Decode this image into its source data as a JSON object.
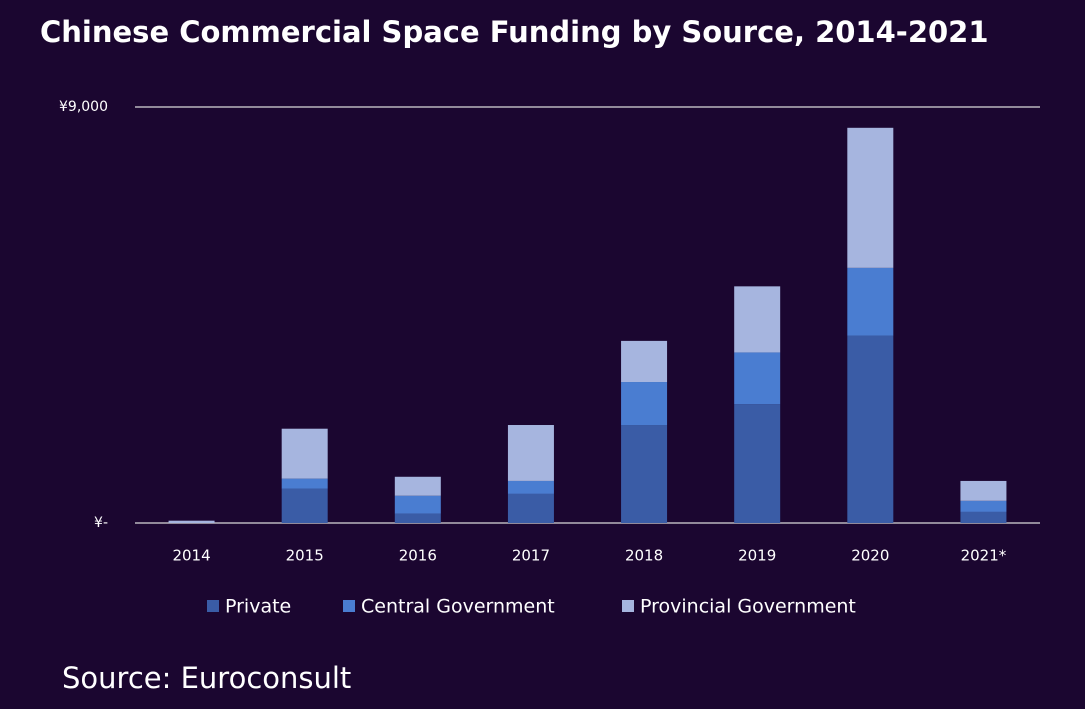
{
  "chart_data": {
    "type": "stacked_bar",
    "title": "Chinese Commercial Space Funding by Source, 2014-2021",
    "source": "Source: Euroconsult",
    "categories": [
      "2014",
      "2015",
      "2016",
      "2017",
      "2018",
      "2019",
      "2020",
      "2021*"
    ],
    "series": [
      {
        "name": "Private",
        "color": "#3a5ca6",
        "values": [
          0,
          740,
          200,
          630,
          2120,
          2570,
          4050,
          240
        ]
      },
      {
        "name": "Central Government",
        "color": "#4a7dd1",
        "values": [
          0,
          220,
          390,
          280,
          930,
          1120,
          1470,
          240
        ]
      },
      {
        "name": "Provincial Government",
        "color": "#a6b5df",
        "values": [
          50,
          1080,
          410,
          1210,
          890,
          1430,
          3030,
          430
        ]
      }
    ],
    "ylim": [
      0,
      9000
    ],
    "yticks": [
      {
        "value": 0,
        "label": "¥-"
      },
      {
        "value": 9000,
        "label": "¥9,000"
      }
    ],
    "grid": true
  }
}
